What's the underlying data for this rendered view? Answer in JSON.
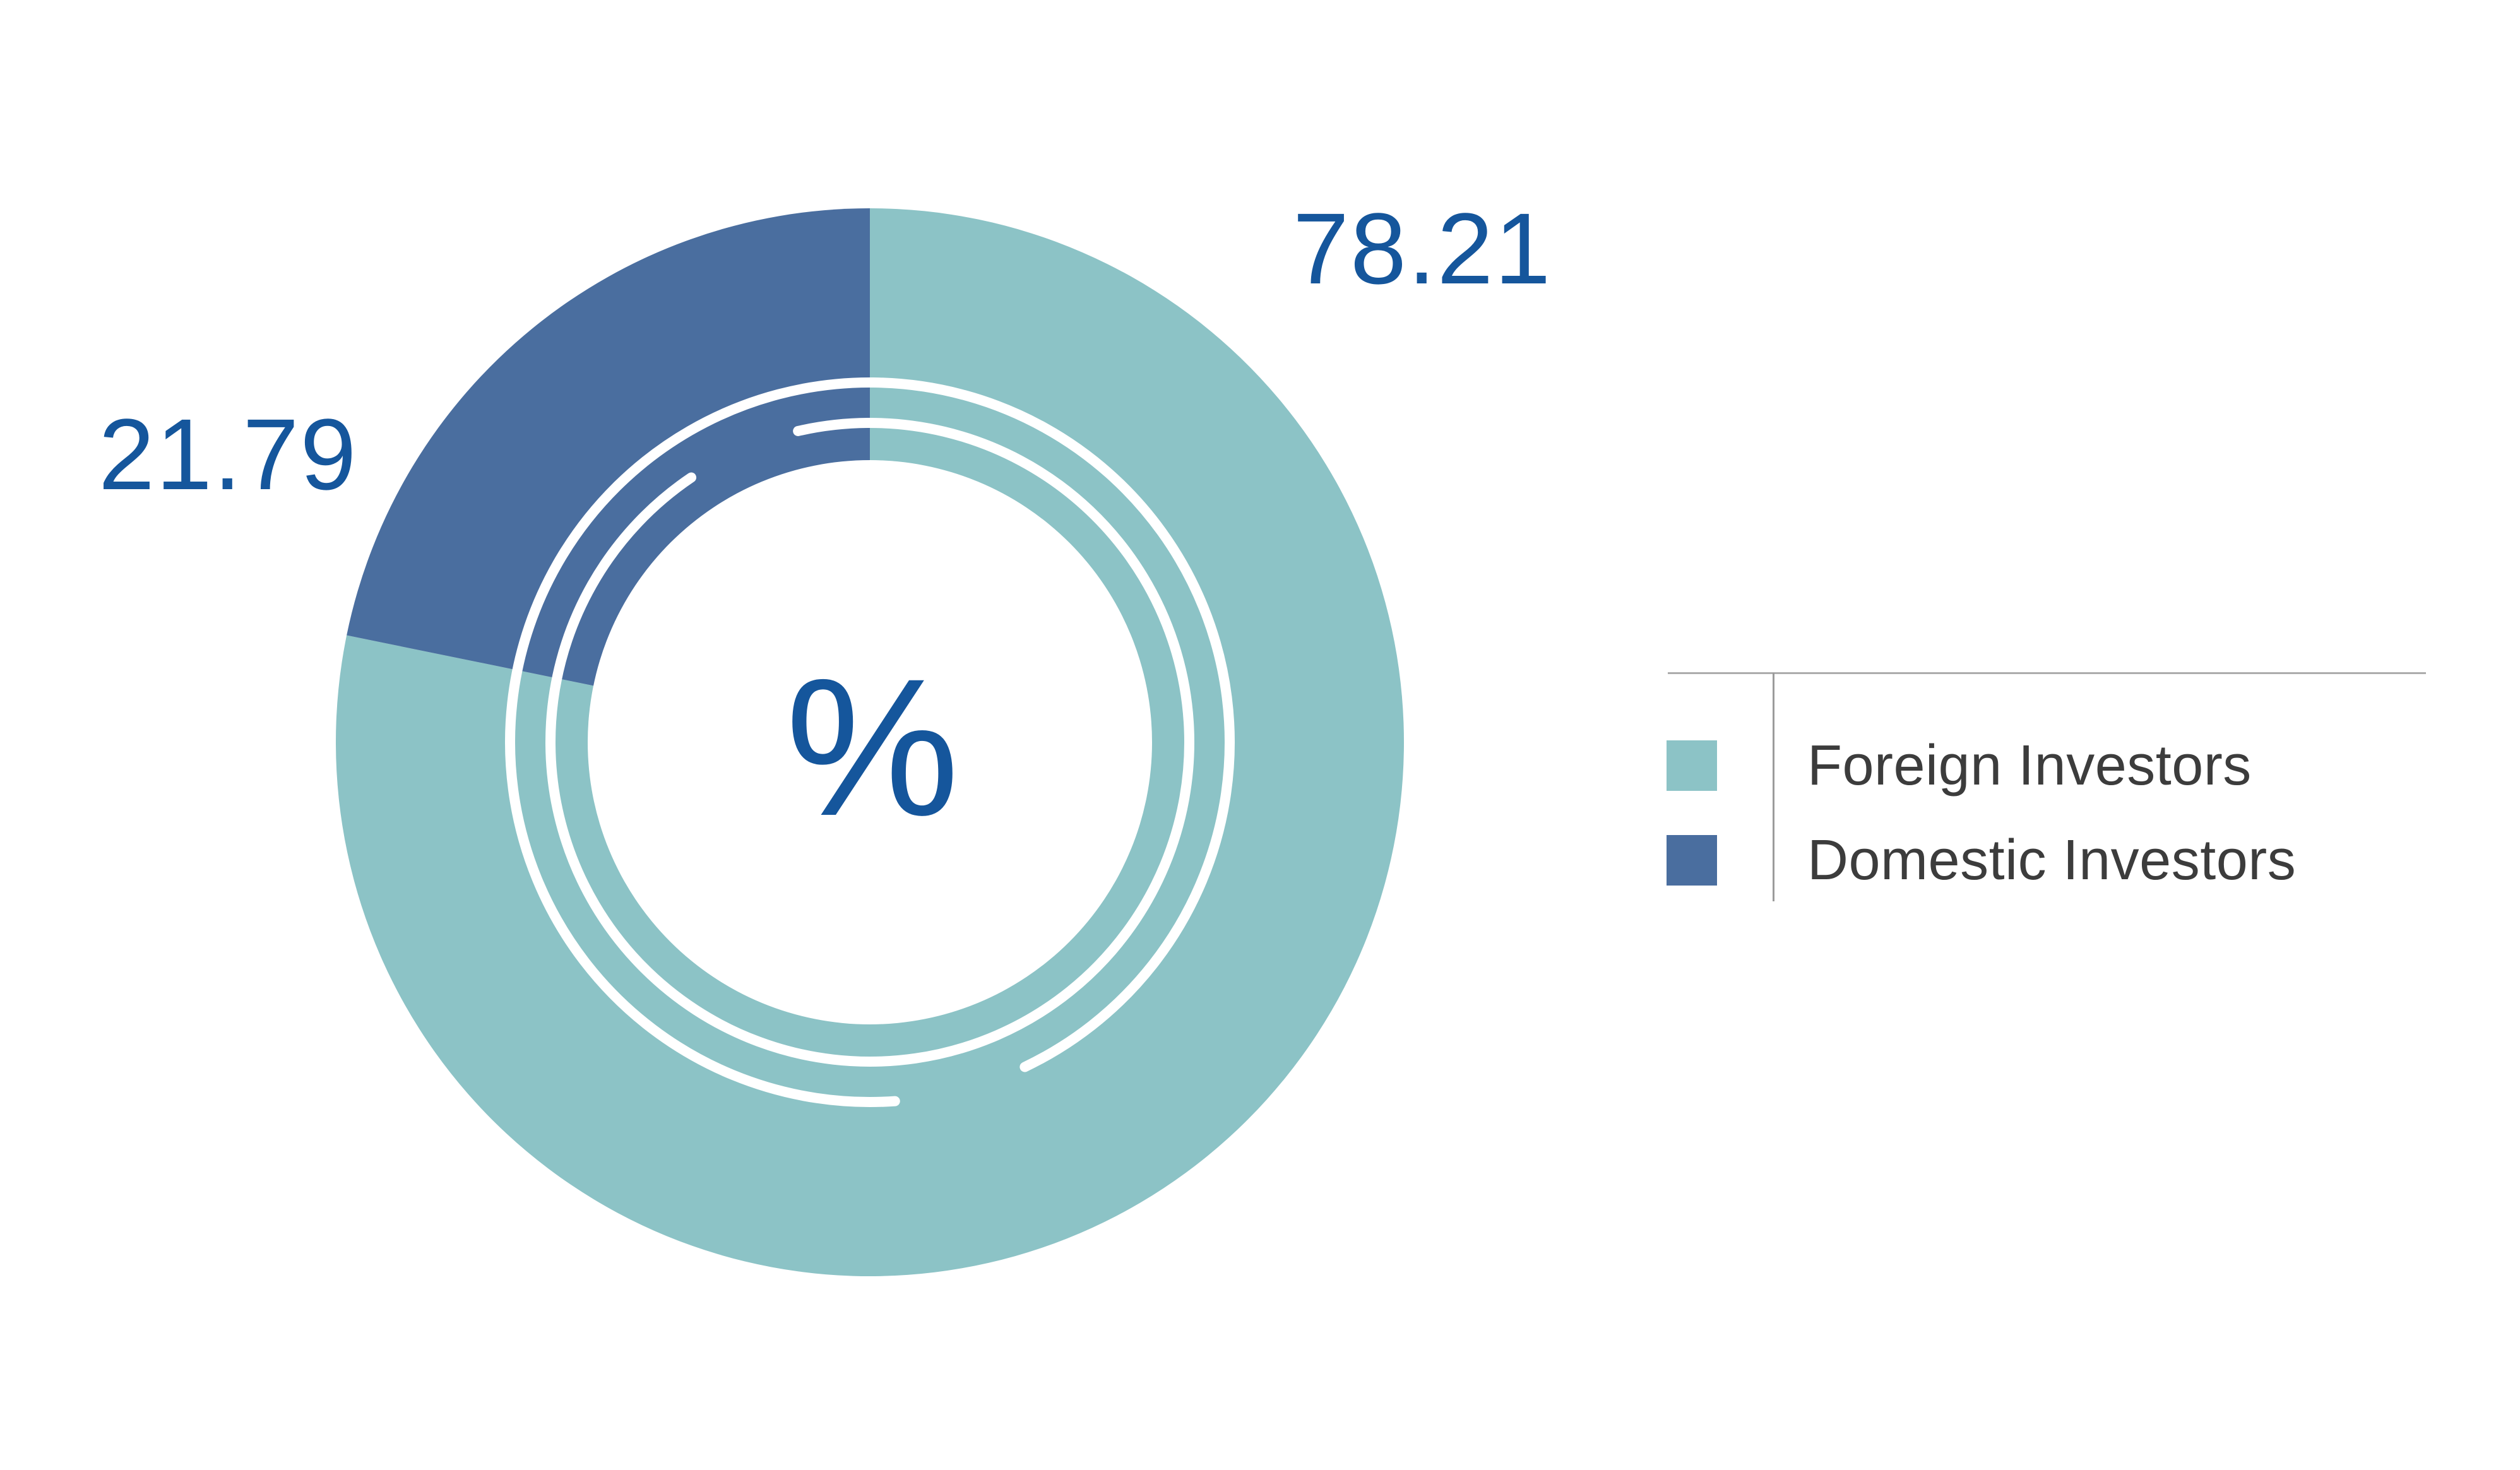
{
  "chart_data": {
    "type": "pie",
    "subtype": "donut",
    "title": "",
    "unit": "%",
    "center_label": "%",
    "categories": [
      "Foreign Investors",
      "Domestic Investors"
    ],
    "values": [
      78.21,
      21.79
    ],
    "series": [
      {
        "name": "Foreign Investors",
        "value": 78.21,
        "data_label": "78.21",
        "color": "#8cc3c6"
      },
      {
        "name": "Domestic Investors",
        "value": 21.79,
        "data_label": "21.79",
        "color": "#4a6e9f"
      }
    ],
    "start_angle_deg": 0,
    "direction": "clockwise",
    "legend_position": "right",
    "grid": false,
    "value_label_color": "#15569c",
    "center_label_color": "#15569c"
  },
  "legend": {
    "items": [
      {
        "label": "Foreign Investors",
        "color": "#8cc3c6"
      },
      {
        "label": "Domestic Investors",
        "color": "#4a6e9f"
      }
    ]
  },
  "colors": {
    "background": "#ffffff",
    "hole": "#ffffff",
    "deco_arcs": "#ffffff",
    "legend_text": "#3c3c3c",
    "legend_rule": "#acacac",
    "legend_divider": "#9b9b9b"
  }
}
